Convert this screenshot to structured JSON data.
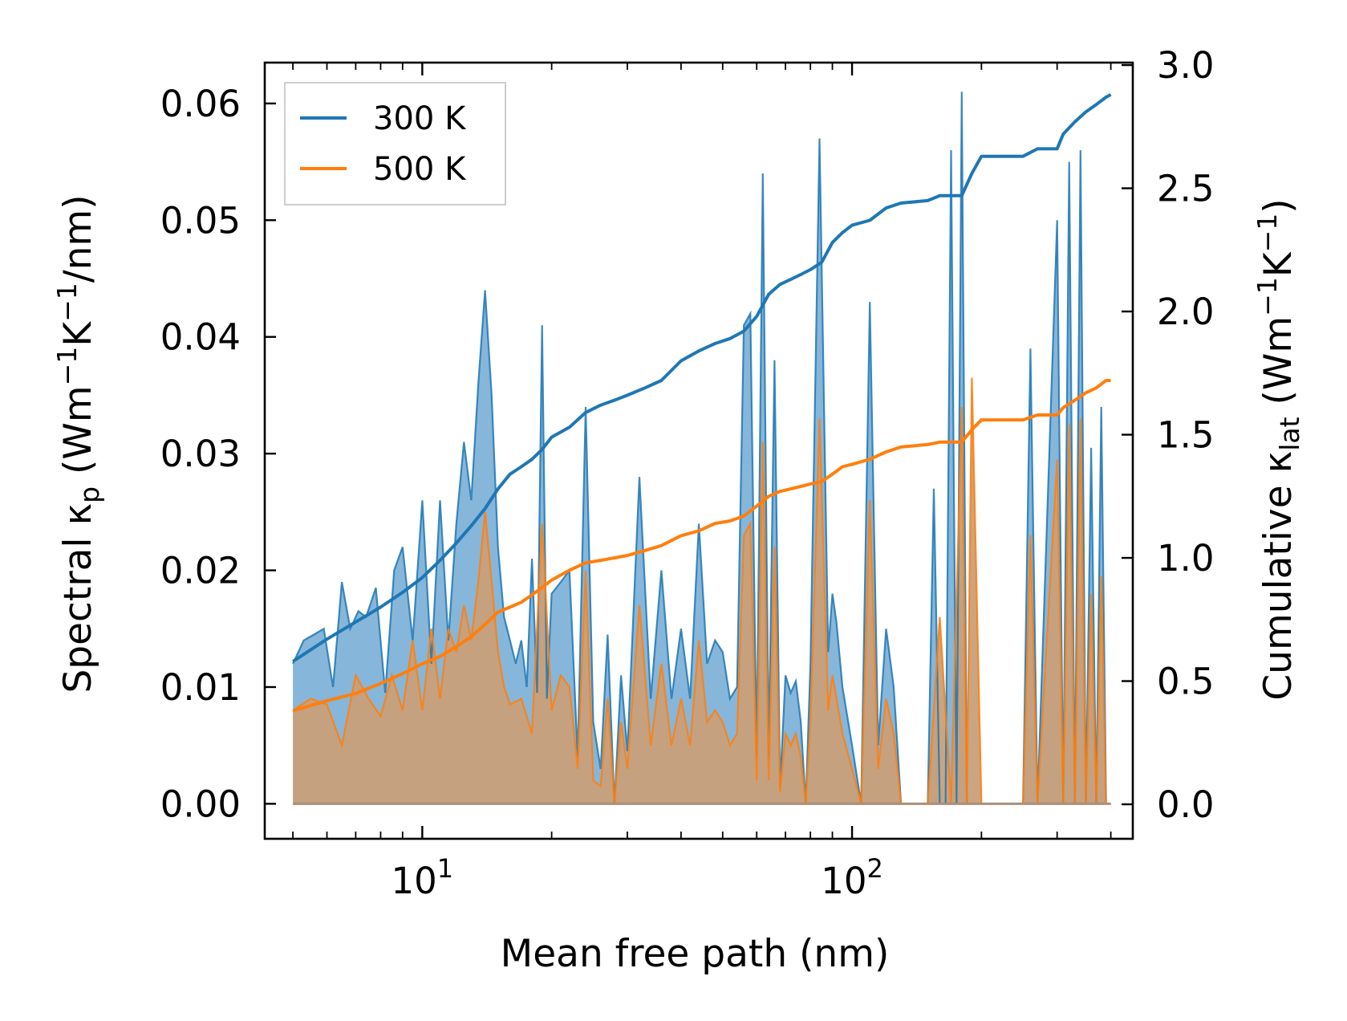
{
  "chart_data": {
    "type": "line",
    "xscale": "log",
    "xlim": [
      4.3,
      450
    ],
    "ylim_left": [
      -0.003,
      0.0635
    ],
    "ylim_right": [
      -0.14,
      3.01
    ],
    "xlabel": "Mean free path (nm)",
    "ylabel_left": {
      "main": "Spectral κ",
      "sub": "p",
      "units_open": " (Wm",
      "sup1": "−1",
      "k": "K",
      "sup2": "−1",
      "units_close": "/nm)"
    },
    "ylabel_right": {
      "main": "Cumulative κ",
      "sub": "lat",
      "units_open": " (Wm",
      "sup1": "−1",
      "k": "K",
      "sup2": "−1",
      "units_close": ")"
    },
    "yticks_left": [
      "0.00",
      "0.01",
      "0.02",
      "0.03",
      "0.04",
      "0.05",
      "0.06"
    ],
    "yticks_left_values": [
      0,
      0.01,
      0.02,
      0.03,
      0.04,
      0.05,
      0.06
    ],
    "yticks_right": [
      "0.0",
      "0.5",
      "1.0",
      "1.5",
      "2.0",
      "2.5",
      "3.0"
    ],
    "yticks_right_values": [
      0,
      0.5,
      1.0,
      1.5,
      2.0,
      2.5,
      3.0
    ],
    "xticks": [
      {
        "base": "10",
        "exp": "1",
        "value": 10
      },
      {
        "base": "10",
        "exp": "2",
        "value": 100
      }
    ],
    "colors": {
      "s300": "#1f77b4",
      "s500": "#ff7f0e",
      "fill300": "#7fb2d8",
      "fill500": "#c8a07a"
    },
    "legend": {
      "position": "upper-left",
      "entries": [
        "300 K",
        "500 K"
      ]
    },
    "spectral_300": {
      "x": [
        5.0,
        5.3,
        5.6,
        5.9,
        6.2,
        6.5,
        6.8,
        7.1,
        7.4,
        7.8,
        8.2,
        8.6,
        9.0,
        9.5,
        10.0,
        10.5,
        11.0,
        11.5,
        12.0,
        12.5,
        13.0,
        13.5,
        14.0,
        14.5,
        15.0,
        15.5,
        16.0,
        16.5,
        17.0,
        17.5,
        18.0,
        18.5,
        19.0,
        19.5,
        20.0,
        21.0,
        22.0,
        23.0,
        24.0,
        25.0,
        26.0,
        27.0,
        28.0,
        29.0,
        30.0,
        32.0,
        34.0,
        36.0,
        38.0,
        40.0,
        42.0,
        44.0,
        46.0,
        48.0,
        50.0,
        52.0,
        54.0,
        56.0,
        58.0,
        60.0,
        62.0,
        64.0,
        66.0,
        68.0,
        70.0,
        72.0,
        74.0,
        76.0,
        78.0,
        80.0,
        84.0,
        88.0,
        90.0,
        92.0,
        95.0,
        100.0,
        105.0,
        110.0,
        115.0,
        120.0,
        125.0,
        130.0,
        135.0,
        140.0,
        150.0,
        155.0,
        160.0,
        165.0,
        170.0,
        175.0,
        180.0,
        185.0,
        190.0,
        195.0,
        200.0,
        210.0,
        250.0,
        260.0,
        270.0,
        300.0,
        310.0,
        320.0,
        330.0,
        340.0,
        350.0,
        360.0,
        370.0,
        380.0,
        390.0,
        400.0
      ],
      "y": [
        0.012,
        0.014,
        0.0145,
        0.015,
        0.01,
        0.019,
        0.015,
        0.0165,
        0.016,
        0.0185,
        0.0095,
        0.02,
        0.022,
        0.014,
        0.026,
        0.012,
        0.026,
        0.014,
        0.024,
        0.031,
        0.026,
        0.036,
        0.044,
        0.035,
        0.022,
        0.016,
        0.014,
        0.012,
        0.014,
        0.01,
        0.021,
        0.0095,
        0.041,
        0.009,
        0.018,
        0.019,
        0.02,
        0.004,
        0.034,
        0.007,
        0.003,
        0.0145,
        0.0,
        0.011,
        0.0045,
        0.028,
        0.009,
        0.02,
        0.009,
        0.015,
        0.009,
        0.024,
        0.012,
        0.014,
        0.013,
        0.009,
        0.01,
        0.041,
        0.042,
        0.004,
        0.054,
        0.004,
        0.038,
        0.0015,
        0.011,
        0.0095,
        0.0105,
        0.007,
        0.0,
        0.012,
        0.057,
        0.013,
        0.018,
        0.0155,
        0.01,
        0.005,
        0.0,
        0.043,
        0.005,
        0.015,
        0.01,
        0.0,
        0.0,
        0.0,
        0.0,
        0.027,
        0.0,
        0.0,
        0.056,
        0.0,
        0.061,
        0.0,
        0.0,
        0.0,
        0.0,
        0.0,
        0.0,
        0.039,
        0.0,
        0.05,
        0.0,
        0.055,
        0.0,
        0.056,
        0.0,
        0.0305,
        0.0,
        0.034,
        0.0,
        0.0
      ]
    },
    "spectral_500": {
      "x": [
        5.0,
        5.5,
        6.0,
        6.5,
        7.0,
        7.5,
        8.0,
        8.5,
        9.0,
        9.5,
        10.0,
        10.5,
        11.0,
        11.5,
        12.0,
        12.5,
        13.0,
        13.5,
        14.0,
        14.5,
        15.0,
        15.5,
        16.0,
        17.0,
        18.0,
        19.0,
        20.0,
        21.0,
        22.0,
        23.0,
        24.0,
        25.0,
        26.0,
        27.0,
        28.0,
        29.0,
        30.0,
        32.0,
        34.0,
        36.0,
        38.0,
        40.0,
        42.0,
        44.0,
        46.0,
        48.0,
        50.0,
        52.0,
        54.0,
        56.0,
        58.0,
        60.0,
        62.0,
        64.0,
        66.0,
        68.0,
        70.0,
        72.0,
        74.0,
        76.0,
        78.0,
        80.0,
        84.0,
        88.0,
        90.0,
        92.0,
        95.0,
        100.0,
        105.0,
        110.0,
        115.0,
        120.0,
        125.0,
        130.0,
        140.0,
        150.0,
        160.0,
        170.0,
        180.0,
        185.0,
        190.0,
        200.0,
        250.0,
        260.0,
        270.0,
        300.0,
        310.0,
        320.0,
        330.0,
        340.0,
        350.0,
        360.0,
        370.0,
        380.0,
        390.0,
        400.0
      ],
      "y": [
        0.008,
        0.009,
        0.0085,
        0.005,
        0.011,
        0.009,
        0.0075,
        0.011,
        0.008,
        0.014,
        0.008,
        0.015,
        0.009,
        0.015,
        0.013,
        0.017,
        0.014,
        0.019,
        0.025,
        0.019,
        0.013,
        0.01,
        0.0085,
        0.009,
        0.006,
        0.024,
        0.008,
        0.011,
        0.01,
        0.003,
        0.02,
        0.002,
        0.0015,
        0.009,
        0.0,
        0.007,
        0.003,
        0.017,
        0.005,
        0.012,
        0.005,
        0.009,
        0.005,
        0.014,
        0.007,
        0.008,
        0.007,
        0.005,
        0.006,
        0.023,
        0.024,
        0.002,
        0.031,
        0.002,
        0.022,
        0.001,
        0.006,
        0.005,
        0.006,
        0.004,
        0.0,
        0.007,
        0.033,
        0.008,
        0.011,
        0.009,
        0.006,
        0.003,
        0.0,
        0.026,
        0.003,
        0.009,
        0.006,
        0.0,
        0.0,
        0.0,
        0.016,
        0.0,
        0.034,
        0.0,
        0.0365,
        0.0,
        0.0,
        0.023,
        0.0,
        0.0295,
        0.0,
        0.0325,
        0.0,
        0.033,
        0.0,
        0.018,
        0.0,
        0.0195,
        0.0,
        0.0
      ]
    },
    "cumulative_300": {
      "x": [
        5.0,
        6.0,
        7.0,
        8.0,
        9.0,
        10.0,
        11.0,
        12.0,
        13.0,
        14.0,
        15.0,
        16.0,
        17.0,
        18.0,
        19.0,
        20.0,
        22.0,
        24.0,
        26.0,
        28.0,
        30.0,
        33.0,
        36.0,
        40.0,
        44.0,
        48.0,
        52.0,
        56.0,
        60.0,
        64.0,
        68.0,
        72.0,
        76.0,
        80.0,
        85.0,
        90.0,
        95.0,
        100.0,
        110.0,
        120.0,
        130.0,
        150.0,
        160.0,
        180.0,
        190.0,
        200.0,
        250.0,
        270.0,
        300.0,
        310.0,
        330.0,
        350.0,
        370.0,
        390.0,
        400.0
      ],
      "y": [
        0.58,
        0.67,
        0.74,
        0.8,
        0.86,
        0.92,
        0.99,
        1.06,
        1.13,
        1.2,
        1.28,
        1.34,
        1.37,
        1.4,
        1.44,
        1.49,
        1.53,
        1.59,
        1.62,
        1.64,
        1.66,
        1.69,
        1.72,
        1.8,
        1.84,
        1.87,
        1.89,
        1.92,
        1.98,
        2.07,
        2.11,
        2.13,
        2.15,
        2.17,
        2.2,
        2.28,
        2.32,
        2.35,
        2.37,
        2.42,
        2.44,
        2.45,
        2.47,
        2.47,
        2.56,
        2.63,
        2.63,
        2.66,
        2.66,
        2.72,
        2.77,
        2.81,
        2.84,
        2.87,
        2.88
      ]
    },
    "cumulative_500": {
      "x": [
        5.0,
        6.0,
        7.0,
        8.0,
        9.0,
        10.0,
        11.0,
        12.0,
        13.0,
        14.0,
        15.0,
        16.0,
        17.0,
        18.0,
        19.0,
        20.0,
        22.0,
        24.0,
        26.0,
        28.0,
        30.0,
        33.0,
        36.0,
        40.0,
        44.0,
        48.0,
        52.0,
        56.0,
        60.0,
        64.0,
        68.0,
        72.0,
        76.0,
        80.0,
        85.0,
        90.0,
        95.0,
        100.0,
        110.0,
        120.0,
        130.0,
        150.0,
        160.0,
        180.0,
        190.0,
        200.0,
        250.0,
        270.0,
        300.0,
        310.0,
        330.0,
        350.0,
        370.0,
        390.0,
        400.0
      ],
      "y": [
        0.38,
        0.42,
        0.45,
        0.49,
        0.53,
        0.57,
        0.6,
        0.64,
        0.68,
        0.73,
        0.78,
        0.8,
        0.82,
        0.85,
        0.88,
        0.91,
        0.95,
        0.98,
        0.99,
        1.0,
        1.01,
        1.03,
        1.05,
        1.09,
        1.11,
        1.14,
        1.15,
        1.17,
        1.21,
        1.25,
        1.27,
        1.28,
        1.29,
        1.3,
        1.31,
        1.34,
        1.37,
        1.38,
        1.4,
        1.43,
        1.45,
        1.46,
        1.47,
        1.47,
        1.52,
        1.56,
        1.56,
        1.58,
        1.58,
        1.61,
        1.64,
        1.67,
        1.69,
        1.72,
        1.72
      ]
    }
  }
}
